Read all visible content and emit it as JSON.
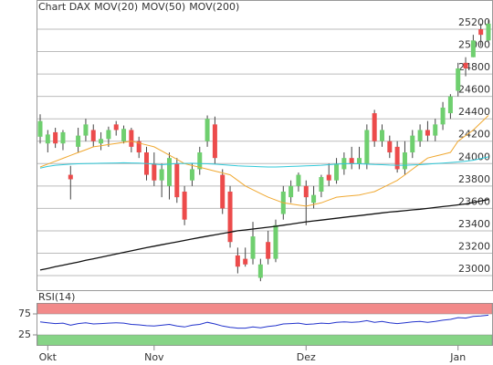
{
  "chart_data": [
    {
      "type": "candlestick",
      "title": "Chart DAX",
      "title_color": "#d9823b",
      "categories": [
        null,
        "Okt",
        null,
        null,
        null,
        null,
        null,
        null,
        null,
        null,
        null,
        null,
        null,
        null,
        null,
        "Nov",
        null,
        null,
        null,
        null,
        null,
        null,
        null,
        null,
        null,
        null,
        null,
        null,
        null,
        null,
        null,
        null,
        null,
        null,
        null,
        "Dez",
        null,
        null,
        null,
        null,
        null,
        null,
        null,
        null,
        null,
        null,
        null,
        null,
        null,
        null,
        null,
        null,
        null,
        null,
        null,
        "Jan",
        null,
        null,
        null,
        null
      ],
      "open": [
        24240,
        24180,
        24280,
        24180,
        23900,
        24150,
        24250,
        24300,
        24180,
        24220,
        24350,
        24200,
        24300,
        24200,
        24100,
        24000,
        23850,
        23800,
        24000,
        23750,
        23850,
        23950,
        24200,
        24350,
        23900,
        23750,
        23180,
        23150,
        23150,
        22980,
        23300,
        23150,
        23550,
        23700,
        23800,
        23800,
        23650,
        23750,
        23900,
        23850,
        23950,
        24050,
        24000,
        24000,
        24450,
        24200,
        24200,
        24150,
        23950,
        24100,
        24200,
        24300,
        24250,
        24350,
        24450,
        24650,
        24900,
        24950,
        25200,
        25100
      ],
      "high": [
        24440,
        24300,
        24320,
        24300,
        23980,
        24320,
        24400,
        24350,
        24280,
        24330,
        24380,
        24340,
        24320,
        24240,
        24150,
        24100,
        24000,
        24100,
        24050,
        23800,
        24000,
        24150,
        24430,
        24420,
        23950,
        23800,
        23250,
        23250,
        23480,
        23150,
        23400,
        23500,
        23800,
        23850,
        23920,
        23850,
        23800,
        23900,
        24000,
        24050,
        24100,
        24150,
        24150,
        24350,
        24480,
        24350,
        24250,
        24200,
        24200,
        24300,
        24350,
        24380,
        24400,
        24550,
        24620,
        24900,
        24950,
        25150,
        25250,
        25280
      ],
      "low": [
        24180,
        24100,
        24140,
        24120,
        23680,
        24100,
        24200,
        24150,
        24120,
        24150,
        24250,
        24180,
        24100,
        24050,
        23850,
        23800,
        23700,
        23680,
        23650,
        23450,
        23800,
        23900,
        24150,
        24000,
        23550,
        23250,
        23020,
        23080,
        23100,
        22950,
        23100,
        23120,
        23500,
        23650,
        23750,
        23450,
        23600,
        23700,
        23800,
        23820,
        23900,
        23950,
        23950,
        23950,
        24150,
        24150,
        24050,
        23920,
        23900,
        24050,
        24150,
        24200,
        24200,
        24300,
        24400,
        24600,
        24780,
        24950,
        25050,
        25080
      ],
      "close": [
        24380,
        24260,
        24180,
        24280,
        23860,
        24250,
        24350,
        24200,
        24220,
        24300,
        24300,
        24310,
        24150,
        24100,
        23900,
        23850,
        23950,
        24050,
        23700,
        23500,
        23950,
        24100,
        24400,
        24050,
        23600,
        23300,
        23080,
        23100,
        23350,
        23100,
        23150,
        23450,
        23750,
        23800,
        23900,
        23700,
        23720,
        23880,
        23850,
        24000,
        24050,
        24000,
        24050,
        24300,
        24200,
        24300,
        24100,
        23950,
        24100,
        24250,
        24300,
        24250,
        24350,
        24500,
        24600,
        24850,
        24850,
        25100,
        25150,
        25250
      ],
      "up_color": "#6fcf6f",
      "down_color": "#ec4b4b",
      "wick_color": "#444",
      "series": [
        {
          "name": "MOV(20)",
          "color": "#f0a830",
          "values": [
            23970,
            23996,
            24021,
            24047,
            24073,
            24099,
            24124,
            24150,
            24160,
            24170,
            24180,
            24190,
            24200,
            24183,
            24167,
            24150,
            24113,
            24075,
            24038,
            24000,
            23983,
            23967,
            23950,
            23933,
            23917,
            23900,
            23850,
            23800,
            23767,
            23733,
            23700,
            23675,
            23650,
            23640,
            23630,
            23620,
            23635,
            23650,
            23675,
            23700,
            23707,
            23713,
            23720,
            23735,
            23750,
            23783,
            23817,
            23850,
            23900,
            23950,
            24000,
            24050,
            24067,
            24083,
            24100,
            24200,
            24250,
            24300,
            24365,
            24430
          ]
        },
        {
          "name": "MOV(50)",
          "color": "#30c8d8",
          "values": [
            23960,
            23975,
            23985,
            23990,
            23995,
            23998,
            24000,
            24002,
            24003,
            24005,
            24006,
            24007,
            24006,
            24004,
            24000,
            23995,
            23990,
            23995,
            24000,
            24002,
            24003,
            24000,
            23998,
            23995,
            23990,
            23985,
            23980,
            23977,
            23975,
            23972,
            23970,
            23970,
            23972,
            23975,
            23977,
            23980,
            23982,
            23985,
            23990,
            23995,
            23998,
            24000,
            23998,
            23995,
            23992,
            23990,
            23987,
            23985,
            23985,
            23988,
            23990,
            23995,
            24000,
            24005,
            24010,
            24015,
            24022,
            24030,
            24045,
            24060
          ]
        },
        {
          "name": "MOV(200)",
          "color": "#111111",
          "values": [
            23050,
            23064,
            23079,
            23093,
            23107,
            23121,
            23136,
            23150,
            23164,
            23179,
            23193,
            23207,
            23221,
            23236,
            23250,
            23263,
            23276,
            23289,
            23301,
            23314,
            23327,
            23340,
            23352,
            23364,
            23376,
            23388,
            23400,
            23408,
            23416,
            23424,
            23432,
            23440,
            23450,
            23460,
            23470,
            23480,
            23488,
            23496,
            23504,
            23512,
            23520,
            23528,
            23536,
            23544,
            23552,
            23560,
            23567,
            23573,
            23580,
            23587,
            23593,
            23600,
            23608,
            23616,
            23624,
            23632,
            23640,
            23653,
            23667,
            23680
          ]
        }
      ],
      "ylim": [
        22870,
        25420
      ],
      "yticks": [
        23000,
        23200,
        23400,
        23600,
        23800,
        24000,
        24200,
        24400,
        24600,
        24800,
        25000,
        25200
      ],
      "grid": true
    },
    {
      "type": "line",
      "title": "RSI(14)",
      "color": "#2233cc",
      "values": [
        56,
        54,
        52,
        53,
        48,
        52,
        54,
        51,
        52,
        53,
        54,
        53,
        50,
        49,
        47,
        46,
        48,
        50,
        46,
        44,
        48,
        50,
        55,
        51,
        46,
        43,
        41,
        41,
        44,
        42,
        45,
        47,
        51,
        52,
        53,
        50,
        51,
        53,
        52,
        55,
        56,
        55,
        56,
        59,
        55,
        57,
        54,
        52,
        54,
        56,
        57,
        55,
        57,
        60,
        62,
        66,
        65,
        69,
        70,
        72
      ],
      "ylim": [
        0,
        100
      ],
      "yticks": [
        25,
        75
      ],
      "zones": [
        {
          "from": 75,
          "to": 100,
          "color": "#f28a8a"
        },
        {
          "from": 0,
          "to": 25,
          "color": "#86d486"
        }
      ]
    }
  ]
}
